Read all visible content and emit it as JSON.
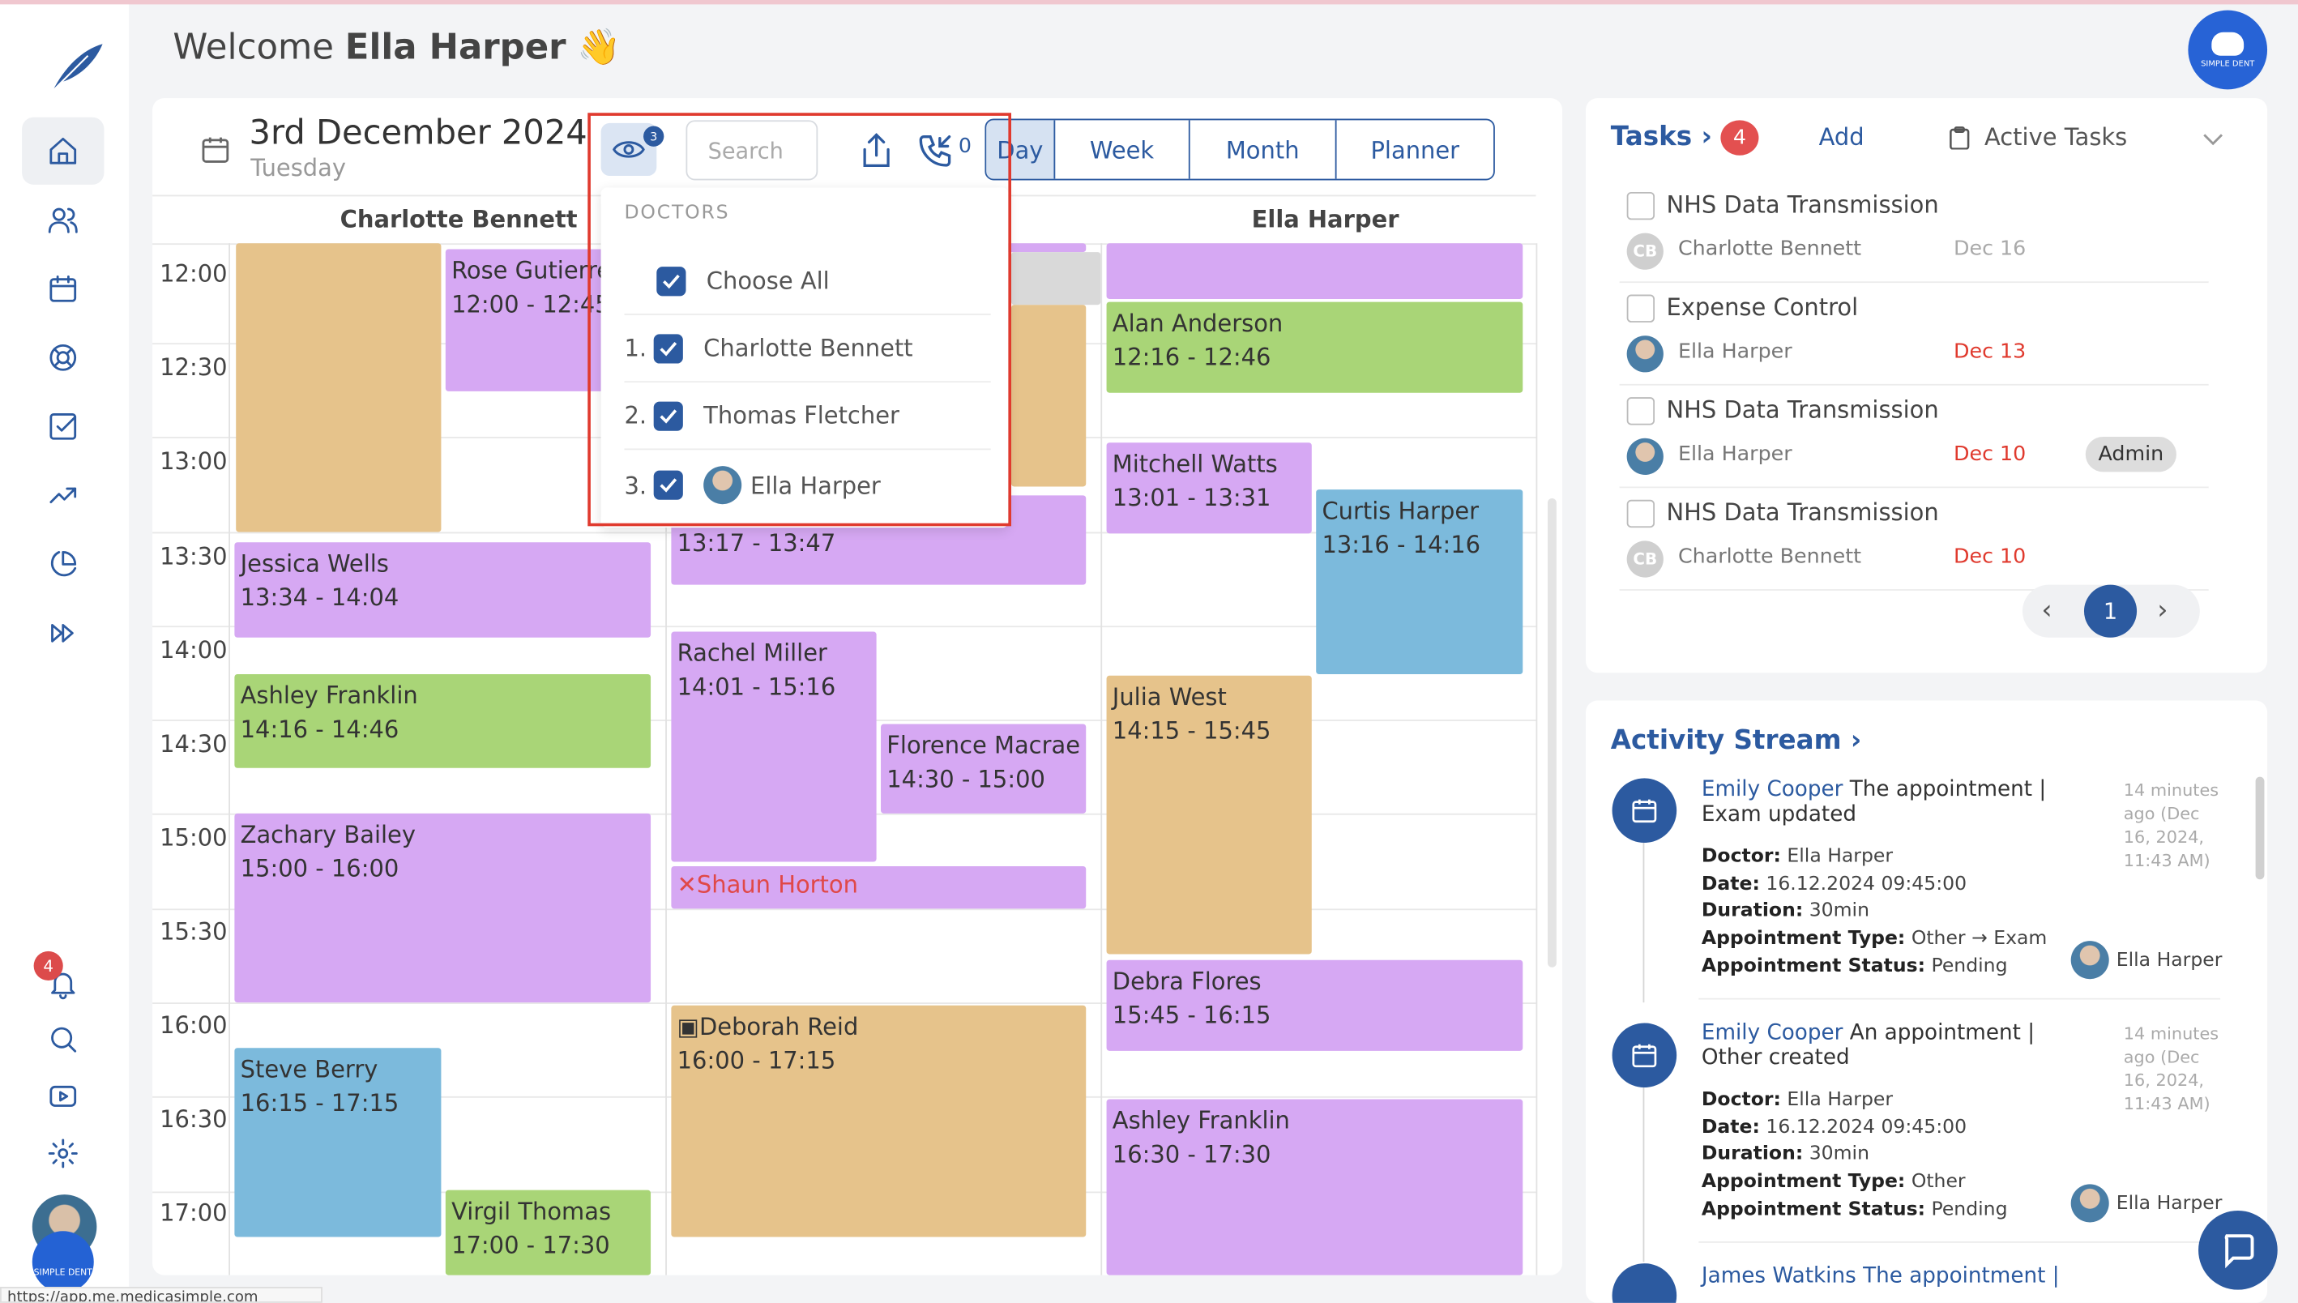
{
  "header": {
    "welcome_prefix": "Welcome",
    "user_name": "Ella Harper",
    "wave": "👋",
    "brand_label": "SIMPLE DENT"
  },
  "sidebar": {
    "items": [
      {
        "icon": "home-icon"
      },
      {
        "icon": "users-icon"
      },
      {
        "icon": "calendar-icon"
      },
      {
        "icon": "lifebuoy-icon"
      },
      {
        "icon": "checkbox-icon"
      },
      {
        "icon": "trending-up-icon"
      },
      {
        "icon": "pie-chart-icon"
      },
      {
        "icon": "fast-forward-icon"
      }
    ],
    "notification_count": "4",
    "brand_label": "SIMPLE DENT"
  },
  "calendar": {
    "date": "3rd December 2024",
    "weekday": "Tuesday",
    "filter_count": "3",
    "search_placeholder": "Search",
    "missed_calls": "0",
    "views": [
      "Day",
      "Week",
      "Month",
      "Planner"
    ],
    "active_view": "Day",
    "columns": [
      "Charlotte Bennett",
      "Ella Harper"
    ],
    "times": [
      "12:00",
      "12:30",
      "13:00",
      "13:30",
      "14:00",
      "14:30",
      "15:00",
      "15:30",
      "16:00",
      "16:30",
      "17:00"
    ],
    "events": [
      {
        "name": "Rose Gutierrez",
        "time": "12:00 - 12:45",
        "color": "purple"
      },
      {
        "name": "Jessica Wells",
        "time": "13:34 - 14:04",
        "color": "purple"
      },
      {
        "name": "Ashley Franklin",
        "time": "14:16 - 14:46",
        "color": "green"
      },
      {
        "name": "Zachary Bailey",
        "time": "15:00 - 16:00",
        "color": "purple"
      },
      {
        "name": "Steve Berry",
        "time": "16:15 - 17:15",
        "color": "blue"
      },
      {
        "name": "Virgil Thomas",
        "time": "17:00 - 17:30",
        "color": "green"
      },
      {
        "name": "",
        "time": "13:17 - 13:47",
        "color": "purple"
      },
      {
        "name": "Rachel Miller",
        "time": "14:01 - 15:16",
        "color": "purple"
      },
      {
        "name": "Florence Macrae",
        "time": "14:30 - 15:00",
        "color": "purple"
      },
      {
        "name": "Shaun Horton",
        "time": "",
        "color": "purple",
        "status": "cancelled"
      },
      {
        "name": "Deborah Reid",
        "time": "16:00 - 17:15",
        "color": "orange"
      },
      {
        "name": "Alan Anderson",
        "time": "12:16 - 12:46",
        "color": "green"
      },
      {
        "name": "Mitchell Watts",
        "time": "13:01 - 13:31",
        "color": "purple"
      },
      {
        "name": "Curtis Harper",
        "time": "13:16 - 14:16",
        "color": "blue"
      },
      {
        "name": "Julia West",
        "time": "14:15 - 15:45",
        "color": "orange"
      },
      {
        "name": "Debra Flores",
        "time": "15:45 - 16:15",
        "color": "purple"
      },
      {
        "name": "Ashley Franklin",
        "time": "16:30 - 17:30",
        "color": "purple"
      }
    ]
  },
  "doctors_dropdown": {
    "heading": "DOCTORS",
    "choose_all": "Choose All",
    "doctors": [
      {
        "num": "1.",
        "name": "Charlotte Bennett"
      },
      {
        "num": "2.",
        "name": "Thomas Fletcher"
      },
      {
        "num": "3.",
        "name": "Ella Harper"
      }
    ]
  },
  "tasks": {
    "title": "Tasks",
    "count": "4",
    "add_label": "Add",
    "filter_label": "Active Tasks",
    "items": [
      {
        "title": "NHS Data Transmission",
        "assignee": "Charlotte Bennett",
        "initials": "CB",
        "date": "Dec 16",
        "overdue": false,
        "badge": ""
      },
      {
        "title": "Expense Control",
        "assignee": "Ella Harper",
        "initials": "",
        "date": "Dec 13",
        "overdue": true,
        "badge": ""
      },
      {
        "title": "NHS Data Transmission",
        "assignee": "Ella Harper",
        "initials": "",
        "date": "Dec 10",
        "overdue": true,
        "badge": "Admin"
      },
      {
        "title": "NHS Data Transmission",
        "assignee": "Charlotte Bennett",
        "initials": "CB",
        "date": "Dec 10",
        "overdue": true,
        "badge": ""
      }
    ],
    "page": "1"
  },
  "activity": {
    "title": "Activity Stream",
    "items": [
      {
        "who": "Emily Cooper",
        "text": "The appointment | Exam updated",
        "time": "14 minutes ago (Dec 16, 2024, 11:43 AM)",
        "doctor_label": "Doctor:",
        "doctor": "Ella Harper",
        "date_label": "Date:",
        "date": "16.12.2024 09:45:00",
        "duration_label": "Duration:",
        "duration": "30min",
        "type_label": "Appointment Type:",
        "type": "Other → Exam",
        "status_label": "Appointment Status:",
        "status": "Pending",
        "user": "Ella Harper"
      },
      {
        "who": "Emily Cooper",
        "text": "An appointment | Other created",
        "time": "14 minutes ago (Dec 16, 2024, 11:43 AM)",
        "doctor_label": "Doctor:",
        "doctor": "Ella Harper",
        "date_label": "Date:",
        "date": "16.12.2024 09:45:00",
        "duration_label": "Duration:",
        "duration": "30min",
        "type_label": "Appointment Type:",
        "type": "Other",
        "status_label": "Appointment Status:",
        "status": "Pending",
        "user": "Ella Harper"
      }
    ],
    "next_partial": "James Watkins The appointment |"
  },
  "status_url": "https://app.me.medicasimple.com",
  "colors": {
    "accent": "#2c5aa0",
    "orange": "#e6c38b",
    "purple": "#d6a8f3",
    "green": "#a9d577",
    "blue": "#7cbadc",
    "alert": "#e03a2e"
  }
}
